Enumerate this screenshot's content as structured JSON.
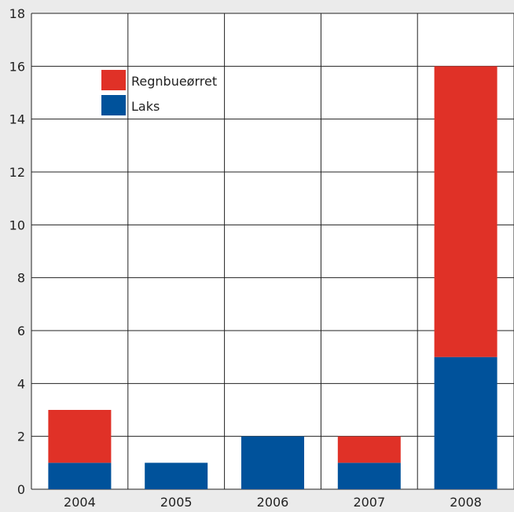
{
  "chart_data": {
    "type": "bar",
    "stacked": true,
    "categories": [
      "2004",
      "2005",
      "2006",
      "2007",
      "2008"
    ],
    "series": [
      {
        "name": "Laks",
        "color": "#00529b",
        "values": [
          1,
          1,
          2,
          1,
          5
        ]
      },
      {
        "name": "Regnbueørret",
        "color": "#e03127",
        "values": [
          2,
          0,
          0,
          1,
          11
        ]
      }
    ],
    "legend_order": [
      "Regnbueørret",
      "Laks"
    ],
    "legend_position": "top-left",
    "ylim": [
      0,
      18
    ],
    "yticks": [
      "0",
      "2",
      "4",
      "6",
      "8",
      "10",
      "12",
      "14",
      "16",
      "18"
    ],
    "grid": true,
    "title": "",
    "xlabel": "",
    "ylabel": ""
  }
}
